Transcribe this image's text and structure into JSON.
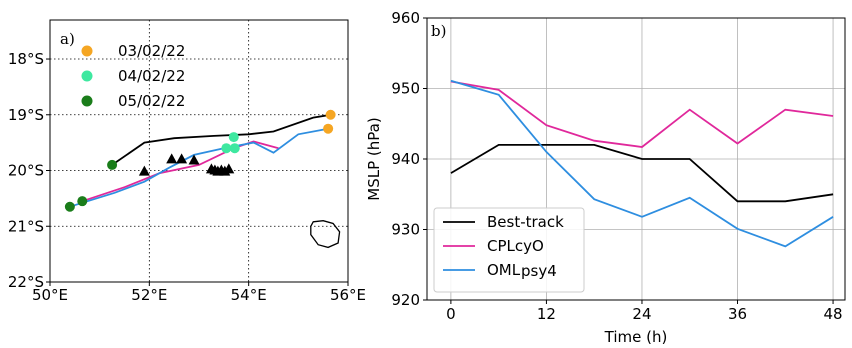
{
  "chart_data": [
    {
      "type": "scatter",
      "panel_label": "a)",
      "x_ticks": [
        50,
        52,
        54,
        56
      ],
      "x_tick_labels": [
        "50°E",
        "52°E",
        "54°E",
        "56°E"
      ],
      "y_ticks": [
        -18,
        -19,
        -20,
        -21,
        -22
      ],
      "y_tick_labels": [
        "18°S",
        "19°S",
        "20°S",
        "21°S",
        "22°S"
      ],
      "xlim": [
        50,
        56
      ],
      "ylim": [
        -22,
        -17.3
      ],
      "grid": "dotted",
      "legend_position": "top-left",
      "colors": {
        "d1": "#f5a623",
        "d2": "#3ee8a0",
        "d3": "#1a7d1a",
        "best_track": "#000000",
        "cpl": "#e0289b",
        "oml": "#2e8ee0",
        "marker": "#000000",
        "island": "#000000"
      },
      "legend": [
        {
          "label": "03/02/22",
          "color": "#f5a623"
        },
        {
          "label": "04/02/22",
          "color": "#3ee8a0"
        },
        {
          "label": "05/02/22",
          "color": "#1a7d1a"
        }
      ],
      "tracks": [
        {
          "key": "best_track",
          "points": [
            [
              51.25,
              -19.9
            ],
            [
              51.9,
              -19.5
            ],
            [
              52.5,
              -19.42
            ],
            [
              53.3,
              -19.38
            ],
            [
              54.0,
              -19.35
            ],
            [
              54.5,
              -19.3
            ],
            [
              55.3,
              -19.05
            ],
            [
              55.65,
              -19.0
            ]
          ]
        },
        {
          "key": "cpl",
          "points": [
            [
              50.65,
              -20.55
            ],
            [
              51.5,
              -20.3
            ],
            [
              52.2,
              -20.05
            ],
            [
              53.0,
              -19.9
            ],
            [
              53.7,
              -19.6
            ],
            [
              54.1,
              -19.48
            ],
            [
              54.6,
              -19.6
            ]
          ]
        },
        {
          "key": "oml",
          "points": [
            [
              50.4,
              -20.65
            ],
            [
              50.65,
              -20.58
            ],
            [
              51.3,
              -20.4
            ],
            [
              51.9,
              -20.2
            ],
            [
              52.4,
              -19.95
            ],
            [
              52.9,
              -19.72
            ],
            [
              53.5,
              -19.6
            ],
            [
              54.1,
              -19.5
            ],
            [
              54.5,
              -19.68
            ],
            [
              55.0,
              -19.35
            ],
            [
              55.6,
              -19.25
            ]
          ]
        }
      ],
      "points": [
        {
          "date": "03/02/22",
          "lon": 55.65,
          "lat": -19.0
        },
        {
          "date": "03/02/22",
          "lon": 55.6,
          "lat": -19.25
        },
        {
          "date": "04/02/22",
          "lon": 53.7,
          "lat": -19.4
        },
        {
          "date": "04/02/22",
          "lon": 53.55,
          "lat": -19.6
        },
        {
          "date": "04/02/22",
          "lon": 53.72,
          "lat": -19.6
        },
        {
          "date": "05/02/22",
          "lon": 51.25,
          "lat": -19.9
        },
        {
          "date": "05/02/22",
          "lon": 50.65,
          "lat": -20.55
        },
        {
          "date": "05/02/22",
          "lon": 50.4,
          "lat": -20.65
        }
      ],
      "triangles": [
        [
          51.9,
          -20.02
        ],
        [
          52.45,
          -19.8
        ],
        [
          52.65,
          -19.8
        ],
        [
          52.9,
          -19.82
        ],
        [
          53.25,
          -19.98
        ],
        [
          53.32,
          -20.0
        ],
        [
          53.38,
          -20.02
        ],
        [
          53.45,
          -20.0
        ],
        [
          53.52,
          -20.02
        ],
        [
          53.6,
          -19.98
        ]
      ],
      "island_outline": [
        [
          55.3,
          -20.92
        ],
        [
          55.5,
          -20.9
        ],
        [
          55.7,
          -20.95
        ],
        [
          55.83,
          -21.1
        ],
        [
          55.8,
          -21.3
        ],
        [
          55.6,
          -21.38
        ],
        [
          55.4,
          -21.33
        ],
        [
          55.25,
          -21.15
        ],
        [
          55.25,
          -21.0
        ]
      ]
    },
    {
      "type": "line",
      "panel_label": "b)",
      "xlabel": "Time (h)",
      "ylabel": "MSLP (hPa)",
      "xlim": [
        -3,
        49.5
      ],
      "ylim": [
        920,
        960
      ],
      "x_ticks": [
        0,
        12,
        24,
        36,
        48
      ],
      "y_ticks": [
        920,
        930,
        940,
        950,
        960
      ],
      "grid": true,
      "legend_position": "bottom-left",
      "x": [
        0,
        6,
        12,
        18,
        24,
        30,
        36,
        42,
        48
      ],
      "series": [
        {
          "name": "Best-track",
          "color": "#000000",
          "values": [
            938,
            942,
            942,
            942,
            940,
            940,
            934,
            934,
            935
          ]
        },
        {
          "name": "CPLcyO",
          "color": "#e0289b",
          "values": [
            951,
            949.8,
            944.8,
            942.6,
            941.7,
            947,
            942.2,
            947,
            946.1
          ]
        },
        {
          "name": "OMLpsy4",
          "name_main": "OML",
          "name_sub": "psy4",
          "color": "#2e8ee0",
          "values": [
            951.1,
            949.1,
            941,
            934.3,
            931.8,
            934.5,
            930.1,
            927.6,
            931.8
          ]
        }
      ]
    }
  ]
}
